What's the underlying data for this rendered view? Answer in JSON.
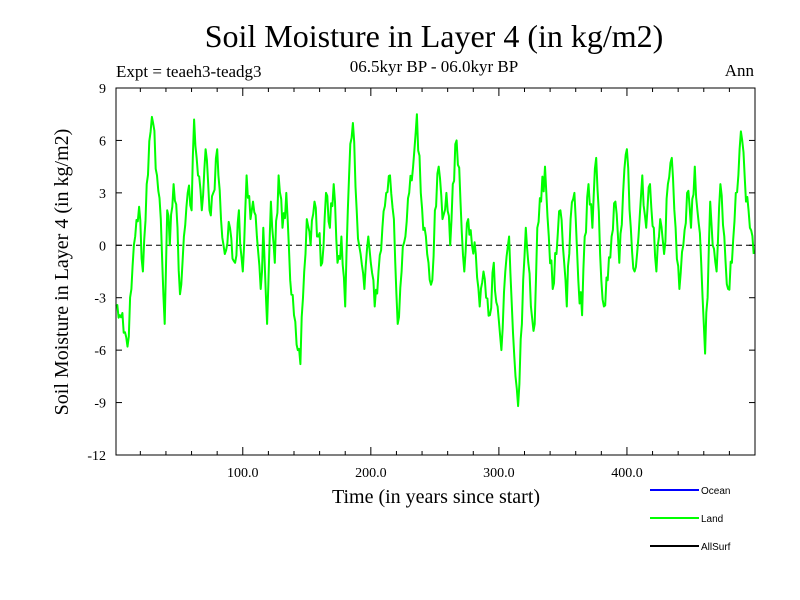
{
  "header": {
    "title": "Soil Moisture in Layer 4 (in kg/m2)",
    "subtitle": "06.5kyr BP - 06.0kyr BP",
    "experiment": "Expt = teaeh3-teadg3",
    "period": "Ann"
  },
  "colors": {
    "ocean": "#0000ff",
    "land": "#00ff00",
    "allsurf": "#000000",
    "axis": "#000000"
  },
  "chart_data": {
    "type": "line",
    "title": "Soil Moisture in Layer 4 (in kg/m2)",
    "subtitle": "06.5kyr BP - 06.0kyr BP",
    "xlabel": "Time (in years since start)",
    "ylabel": "Soil Moisture in Layer 4 (in kg/m2)",
    "xlim": [
      1,
      500
    ],
    "ylim": [
      -12,
      9
    ],
    "xticks": [
      100,
      200,
      300,
      400
    ],
    "xtick_labels": [
      "100.0",
      "200.0",
      "300.0",
      "400.0"
    ],
    "yticks": [
      -12,
      -9,
      -6,
      -3,
      0,
      3,
      6,
      9
    ],
    "ytick_labels": [
      "-12",
      "-9",
      "-6",
      "-3",
      "0",
      "3",
      "6",
      "9"
    ],
    "zero_line": "dashed",
    "legend_position": "bottom-right",
    "legend": [
      "Ocean",
      "Land",
      "AllSurf"
    ],
    "series": [
      {
        "name": "Land",
        "color": "#00ff00",
        "keypoints": [
          [
            1,
            -3.5
          ],
          [
            4,
            -4.0
          ],
          [
            7,
            -5.0
          ],
          [
            10,
            -5.8
          ],
          [
            13,
            -2.5
          ],
          [
            16,
            0.5
          ],
          [
            19,
            2.2
          ],
          [
            22,
            -1.5
          ],
          [
            25,
            3.5
          ],
          [
            28,
            6.5
          ],
          [
            30,
            7.0
          ],
          [
            33,
            4.0
          ],
          [
            36,
            1.5
          ],
          [
            39,
            -4.5
          ],
          [
            41,
            2.0
          ],
          [
            43,
            0.0
          ],
          [
            46,
            3.5
          ],
          [
            49,
            1.0
          ],
          [
            51,
            -2.8
          ],
          [
            54,
            0.5
          ],
          [
            57,
            3.0
          ],
          [
            60,
            2.0
          ],
          [
            62,
            7.2
          ],
          [
            65,
            4.0
          ],
          [
            68,
            2.0
          ],
          [
            71,
            5.5
          ],
          [
            74,
            2.0
          ],
          [
            77,
            3.0
          ],
          [
            80,
            5.5
          ],
          [
            83,
            1.5
          ],
          [
            86,
            -0.5
          ],
          [
            90,
            1.0
          ],
          [
            94,
            -1.0
          ],
          [
            97,
            2.0
          ],
          [
            100,
            -1.5
          ],
          [
            103,
            4.0
          ],
          [
            106,
            1.5
          ],
          [
            108,
            2.5
          ],
          [
            111,
            0.5
          ],
          [
            114,
            -2.5
          ],
          [
            116,
            1.0
          ],
          [
            119,
            -4.5
          ],
          [
            122,
            2.5
          ],
          [
            125,
            -1.0
          ],
          [
            128,
            4.0
          ],
          [
            131,
            1.0
          ],
          [
            134,
            3.0
          ],
          [
            137,
            -2.0
          ],
          [
            140,
            -4.0
          ],
          [
            143,
            -6.0
          ],
          [
            145,
            -6.8
          ],
          [
            147,
            -3.0
          ],
          [
            150,
            1.5
          ],
          [
            153,
            0.0
          ],
          [
            156,
            2.5
          ],
          [
            159,
            0.5
          ],
          [
            162,
            -1.0
          ],
          [
            165,
            3.0
          ],
          [
            168,
            1.0
          ],
          [
            171,
            3.5
          ],
          [
            174,
            -1.0
          ],
          [
            177,
            0.5
          ],
          [
            180,
            -3.5
          ],
          [
            183,
            4.0
          ],
          [
            186,
            7.0
          ],
          [
            189,
            2.0
          ],
          [
            192,
            -0.5
          ],
          [
            195,
            -2.5
          ],
          [
            198,
            0.5
          ],
          [
            200,
            -1.0
          ],
          [
            203,
            -3.5
          ],
          [
            206,
            -1.5
          ],
          [
            209,
            1.0
          ],
          [
            212,
            3.0
          ],
          [
            215,
            4.0
          ],
          [
            218,
            1.5
          ],
          [
            221,
            -4.5
          ],
          [
            224,
            -1.5
          ],
          [
            227,
            0.5
          ],
          [
            230,
            3.0
          ],
          [
            233,
            4.5
          ],
          [
            236,
            7.5
          ],
          [
            239,
            3.0
          ],
          [
            242,
            1.0
          ],
          [
            245,
            -1.0
          ],
          [
            248,
            -2.0
          ],
          [
            250,
            2.0
          ],
          [
            253,
            4.5
          ],
          [
            256,
            1.5
          ],
          [
            259,
            3.0
          ],
          [
            262,
            0.0
          ],
          [
            264,
            3.5
          ],
          [
            267,
            6.0
          ],
          [
            270,
            2.5
          ],
          [
            273,
            -1.5
          ],
          [
            276,
            1.5
          ],
          [
            279,
            0.0
          ],
          [
            282,
            -0.5
          ],
          [
            285,
            -3.5
          ],
          [
            288,
            -1.5
          ],
          [
            290,
            -3.0
          ],
          [
            293,
            -4.0
          ],
          [
            296,
            -1.0
          ],
          [
            299,
            -3.5
          ],
          [
            302,
            -6.0
          ],
          [
            305,
            -1.5
          ],
          [
            308,
            0.5
          ],
          [
            311,
            -5.0
          ],
          [
            313,
            -7.5
          ],
          [
            315,
            -9.2
          ],
          [
            318,
            -4.5
          ],
          [
            321,
            1.0
          ],
          [
            323,
            -1.0
          ],
          [
            325,
            -3.5
          ],
          [
            328,
            -4.5
          ],
          [
            330,
            1.0
          ],
          [
            333,
            2.5
          ],
          [
            336,
            4.5
          ],
          [
            339,
            0.5
          ],
          [
            342,
            -2.5
          ],
          [
            345,
            -0.5
          ],
          [
            348,
            2.0
          ],
          [
            351,
            -1.0
          ],
          [
            353,
            -3.5
          ],
          [
            356,
            1.5
          ],
          [
            359,
            3.0
          ],
          [
            362,
            -2.0
          ],
          [
            365,
            -4.0
          ],
          [
            367,
            0.5
          ],
          [
            370,
            3.5
          ],
          [
            373,
            1.0
          ],
          [
            376,
            5.0
          ],
          [
            379,
            -0.5
          ],
          [
            382,
            -3.5
          ],
          [
            385,
            -2.0
          ],
          [
            388,
            0.5
          ],
          [
            391,
            2.5
          ],
          [
            394,
            -1.0
          ],
          [
            397,
            3.0
          ],
          [
            400,
            5.5
          ],
          [
            403,
            1.0
          ],
          [
            406,
            -1.5
          ],
          [
            409,
            0.5
          ],
          [
            412,
            4.0
          ],
          [
            415,
            1.0
          ],
          [
            418,
            3.5
          ],
          [
            421,
            1.0
          ],
          [
            423,
            -1.5
          ],
          [
            426,
            1.5
          ],
          [
            429,
            -0.5
          ],
          [
            432,
            3.5
          ],
          [
            435,
            5.0
          ],
          [
            438,
            1.0
          ],
          [
            441,
            -2.5
          ],
          [
            444,
            0.0
          ],
          [
            447,
            3.0
          ],
          [
            450,
            1.0
          ],
          [
            453,
            4.5
          ],
          [
            455,
            2.0
          ],
          [
            458,
            -1.0
          ],
          [
            461,
            -6.2
          ],
          [
            463,
            -3.0
          ],
          [
            465,
            2.5
          ],
          [
            467,
            0.0
          ],
          [
            470,
            -1.5
          ],
          [
            473,
            3.5
          ],
          [
            476,
            0.5
          ],
          [
            479,
            -2.5
          ],
          [
            482,
            -1.0
          ],
          [
            485,
            3.0
          ],
          [
            488,
            5.5
          ],
          [
            490,
            6.0
          ],
          [
            493,
            2.5
          ],
          [
            496,
            1.0
          ],
          [
            499,
            -0.5
          ]
        ]
      }
    ]
  }
}
